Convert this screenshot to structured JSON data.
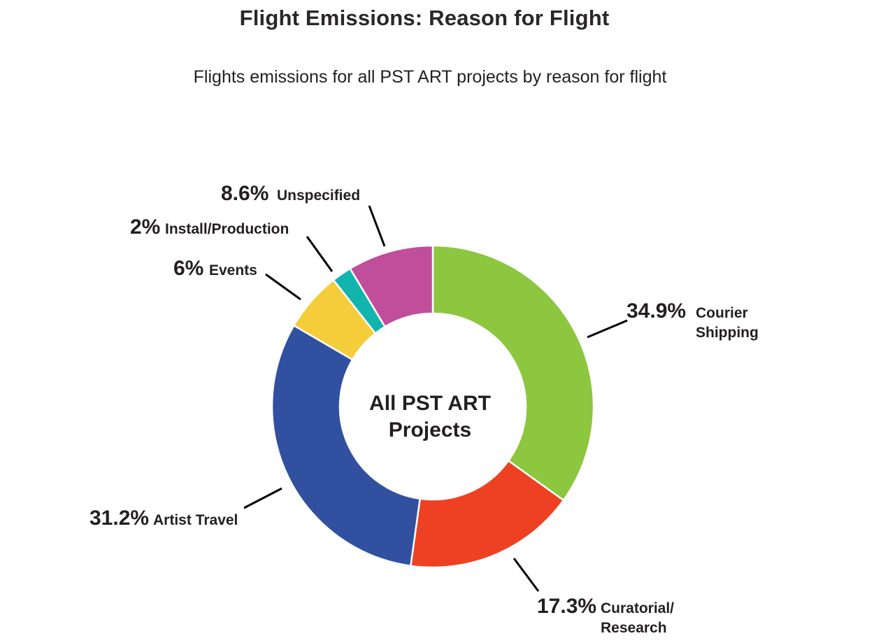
{
  "header": {
    "title": "Flight Emissions: Reason for Flight",
    "subtitle": "Flights emissions for all PST ART projects by reason for flight"
  },
  "center_label": {
    "line1": "All PST ART",
    "line2": "Projects"
  },
  "labels": {
    "courier": {
      "pct": "34.9%",
      "line1": "Courier",
      "line2": "Shipping"
    },
    "curatorial": {
      "pct": "17.3%",
      "line1": "Curatorial/",
      "line2": "Research"
    },
    "artist": {
      "pct": "31.2%",
      "line1": "Artist Travel"
    },
    "events": {
      "pct": "6%",
      "line1": "Events"
    },
    "install": {
      "pct": "2%",
      "line1": "Install/Production"
    },
    "unspecified": {
      "pct": "8.6%",
      "line1": "Unspecified"
    }
  },
  "chart_data": {
    "type": "pie",
    "variant": "donut",
    "title": "Flight Emissions: Reason for Flight",
    "subtitle": "Flights emissions for all PST ART projects by reason for flight",
    "center_label": "All PST ART Projects",
    "categories": [
      "Courier Shipping",
      "Curatorial/Research",
      "Artist Travel",
      "Events",
      "Install/Production",
      "Unspecified"
    ],
    "values": [
      34.9,
      17.3,
      31.2,
      6,
      2,
      8.6
    ],
    "unit": "%",
    "colors": [
      "#8dc63f",
      "#ee4123",
      "#3150a0",
      "#f5cd3b",
      "#12b5ad",
      "#c04e9b"
    ],
    "start_angle": "12 o'clock",
    "direction": "clockwise",
    "legend": "none (callout labels with leader lines)"
  }
}
